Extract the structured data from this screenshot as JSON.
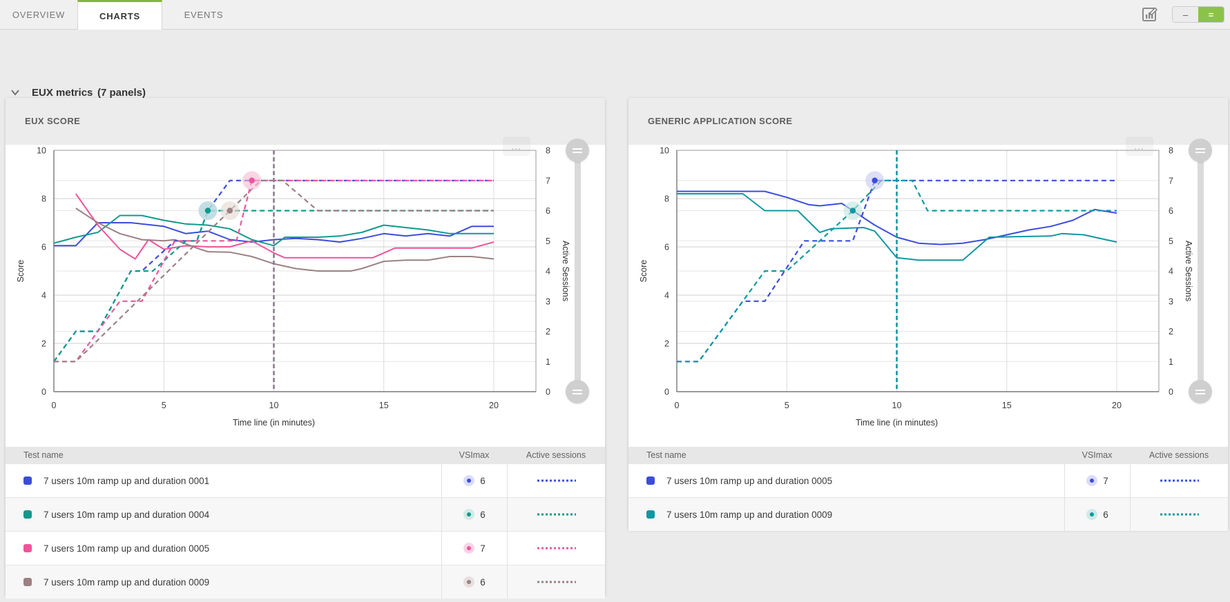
{
  "tabs": [
    {
      "label": "OVERVIEW",
      "active": false
    },
    {
      "label": "CHARTS",
      "active": true
    },
    {
      "label": "EVENTS",
      "active": false
    }
  ],
  "toolbar": {
    "chart_edit_icon": "chart-edit-icon",
    "compact_label": "–",
    "expanded_label": "=",
    "accent_green": "#8bc34a"
  },
  "section": {
    "title": "EUX metrics",
    "count": "(7 panels)"
  },
  "panels": [
    {
      "title": "EUX SCORE",
      "table": {
        "headers": [
          "Test name",
          "VSImax",
          "Active sessions"
        ],
        "rows": [
          {
            "name": "7 users 10m ramp up and duration 0001",
            "color": "#3b4cdf",
            "halo": "#dadcf8",
            "vsimax": "6"
          },
          {
            "name": "7 users 10m ramp up and duration 0004",
            "color": "#11998c",
            "halo": "#d0eae6",
            "vsimax": "6"
          },
          {
            "name": "7 users 10m ramp up and duration 0005",
            "color": "#ef549b",
            "halo": "#fad4e7",
            "vsimax": "7"
          },
          {
            "name": "7 users 10m ramp up and duration 0009",
            "color": "#9c8084",
            "halo": "#e7dede",
            "vsimax": "6"
          }
        ]
      }
    },
    {
      "title": "GENERIC APPLICATION SCORE",
      "table": {
        "headers": [
          "Test name",
          "VSImax",
          "Active sessions"
        ],
        "rows": [
          {
            "name": "7 users 10m ramp up and duration 0005",
            "color": "#3b4cdf",
            "halo": "#dadcf8",
            "vsimax": "7"
          },
          {
            "name": "7 users 10m ramp up and duration 0009",
            "color": "#0f98a0",
            "halo": "#cdeae8",
            "vsimax": "6"
          }
        ]
      }
    }
  ],
  "chart_data": [
    {
      "type": "line",
      "title": "EUX SCORE",
      "xlabel": "Time line (in minutes)",
      "ylabel_left": "Score",
      "ylabel_right": "Active Sessions",
      "xlim": [
        0,
        20
      ],
      "xticks": [
        0,
        5,
        10,
        15,
        20
      ],
      "ylim_left": [
        0,
        10
      ],
      "yticks_left": [
        0,
        2,
        4,
        6,
        8,
        10
      ],
      "ylim_right": [
        0,
        8
      ],
      "yticks_right": [
        0,
        1,
        2,
        3,
        4,
        5,
        6,
        7,
        8
      ],
      "grid": true,
      "vertical_marker": {
        "x": 10,
        "color": "#8d7a91"
      },
      "series": [
        {
          "name": "7 users 10m ramp up and duration 0001",
          "color": "#3b4cdf",
          "style": "solid",
          "axis": "left",
          "points": [
            [
              0,
              6.05
            ],
            [
              1,
              6.05
            ],
            [
              2,
              7.0
            ],
            [
              3.5,
              7.0
            ],
            [
              4,
              6.95
            ],
            [
              5,
              6.85
            ],
            [
              6,
              6.55
            ],
            [
              7,
              6.65
            ],
            [
              8,
              6.3
            ],
            [
              9,
              6.2
            ],
            [
              10,
              6.3
            ],
            [
              11,
              6.35
            ],
            [
              12,
              6.3
            ],
            [
              13,
              6.2
            ],
            [
              14,
              6.35
            ],
            [
              15,
              6.55
            ],
            [
              16,
              6.45
            ],
            [
              17,
              6.55
            ],
            [
              18,
              6.45
            ],
            [
              19,
              6.85
            ],
            [
              20,
              6.85
            ]
          ]
        },
        {
          "name": "7 users 10m ramp up and duration 0004",
          "color": "#11998c",
          "style": "solid",
          "axis": "left",
          "points": [
            [
              0,
              6.15
            ],
            [
              1,
              6.4
            ],
            [
              2,
              6.6
            ],
            [
              3,
              7.3
            ],
            [
              4,
              7.3
            ],
            [
              5,
              7.1
            ],
            [
              6,
              6.95
            ],
            [
              7,
              6.9
            ],
            [
              8,
              6.75
            ],
            [
              9,
              6.3
            ],
            [
              10,
              6.05
            ],
            [
              10.5,
              6.4
            ],
            [
              12,
              6.4
            ],
            [
              13,
              6.45
            ],
            [
              14,
              6.6
            ],
            [
              15,
              6.9
            ],
            [
              16,
              6.8
            ],
            [
              17,
              6.7
            ],
            [
              18,
              6.55
            ],
            [
              19,
              6.55
            ],
            [
              20,
              6.55
            ]
          ]
        },
        {
          "name": "7 users 10m ramp up and duration 0005",
          "color": "#ef549b",
          "style": "solid",
          "axis": "left",
          "points": [
            [
              1,
              8.2
            ],
            [
              2,
              6.9
            ],
            [
              3,
              5.9
            ],
            [
              3.7,
              5.5
            ],
            [
              4.3,
              6.3
            ],
            [
              5,
              5.9
            ],
            [
              6,
              6.05
            ],
            [
              7,
              6.0
            ],
            [
              8,
              6.0
            ],
            [
              9,
              6.25
            ],
            [
              10,
              5.75
            ],
            [
              10.5,
              5.55
            ],
            [
              14.5,
              5.55
            ],
            [
              15.5,
              5.95
            ],
            [
              19,
              5.95
            ],
            [
              20,
              6.2
            ]
          ]
        },
        {
          "name": "7 users 10m ramp up and duration 0009",
          "color": "#9c8084",
          "style": "solid",
          "axis": "left",
          "points": [
            [
              1,
              7.6
            ],
            [
              2,
              7.0
            ],
            [
              3,
              6.55
            ],
            [
              4,
              6.3
            ],
            [
              5,
              6.25
            ],
            [
              5.5,
              6.3
            ],
            [
              6.5,
              5.95
            ],
            [
              7,
              5.8
            ],
            [
              8,
              5.78
            ],
            [
              9,
              5.6
            ],
            [
              10,
              5.3
            ],
            [
              11,
              5.1
            ],
            [
              12,
              5.0
            ],
            [
              13.5,
              5.0
            ],
            [
              14,
              5.1
            ],
            [
              15,
              5.4
            ],
            [
              16,
              5.45
            ],
            [
              17,
              5.45
            ],
            [
              18,
              5.6
            ],
            [
              19,
              5.6
            ],
            [
              20,
              5.5
            ]
          ]
        },
        {
          "name": "0001 active sessions",
          "color": "#3b4cdf",
          "style": "dashed",
          "axis": "right",
          "points": [
            [
              0,
              1
            ],
            [
              1,
              2
            ],
            [
              2,
              2
            ],
            [
              3.5,
              4
            ],
            [
              4,
              4
            ],
            [
              5.5,
              5
            ],
            [
              6.5,
              5
            ],
            [
              7,
              6
            ],
            [
              8,
              7
            ],
            [
              20,
              7
            ]
          ]
        },
        {
          "name": "0004 active sessions",
          "color": "#11998c",
          "style": "dashed",
          "axis": "right",
          "points": [
            [
              0,
              1
            ],
            [
              1,
              2
            ],
            [
              2,
              2
            ],
            [
              3.5,
              4
            ],
            [
              4.5,
              4
            ],
            [
              6,
              5
            ],
            [
              6.5,
              5
            ],
            [
              7,
              6
            ],
            [
              20,
              6
            ]
          ]
        },
        {
          "name": "0005 active sessions",
          "color": "#ef549b",
          "style": "dashed",
          "axis": "right",
          "points": [
            [
              0,
              1
            ],
            [
              1,
              1
            ],
            [
              3,
              3
            ],
            [
              4,
              3
            ],
            [
              5.5,
              5
            ],
            [
              8.3,
              5
            ],
            [
              9,
              7
            ],
            [
              20,
              7
            ]
          ]
        },
        {
          "name": "0009 active sessions",
          "color": "#9c8084",
          "style": "dashed",
          "axis": "right",
          "points": [
            [
              0,
              1
            ],
            [
              1,
              1
            ],
            [
              8,
              6
            ],
            [
              9.4,
              7
            ],
            [
              10.4,
              7
            ],
            [
              12,
              6
            ],
            [
              20,
              6
            ]
          ]
        }
      ],
      "vsimax_markers": [
        {
          "x": 7,
          "sessions": 6,
          "color": "#3b4cdf",
          "halo": "#a6c3e4"
        },
        {
          "x": 7,
          "sessions": 6,
          "color": "#11998c",
          "halo": "#bfe0db"
        },
        {
          "x": 8,
          "sessions": 6,
          "color": "#9c8084",
          "halo": "#e3d8d0"
        },
        {
          "x": 9,
          "sessions": 7,
          "color": "#ef549b",
          "halo": "#f6bcd6"
        }
      ]
    },
    {
      "type": "line",
      "title": "GENERIC APPLICATION SCORE",
      "xlabel": "Time line (in minutes)",
      "ylabel_left": "Score",
      "ylabel_right": "Active Sessions",
      "xlim": [
        0,
        20
      ],
      "xticks": [
        0,
        5,
        10,
        15,
        20
      ],
      "ylim_left": [
        0,
        10
      ],
      "yticks_left": [
        0,
        2,
        4,
        6,
        8,
        10
      ],
      "ylim_right": [
        0,
        8
      ],
      "yticks_right": [
        0,
        1,
        2,
        3,
        4,
        5,
        6,
        7,
        8
      ],
      "grid": true,
      "vertical_marker": {
        "x": 10,
        "color": "#0f98a0"
      },
      "series": [
        {
          "name": "7 users 10m ramp up and duration 0005",
          "color": "#3b4cdf",
          "style": "solid",
          "axis": "left",
          "points": [
            [
              0,
              8.3
            ],
            [
              4,
              8.3
            ],
            [
              5,
              8.05
            ],
            [
              6,
              7.75
            ],
            [
              6.5,
              7.7
            ],
            [
              7.5,
              7.8
            ],
            [
              8,
              7.5
            ],
            [
              9,
              6.9
            ],
            [
              10,
              6.4
            ],
            [
              11,
              6.15
            ],
            [
              12,
              6.1
            ],
            [
              13,
              6.15
            ],
            [
              14,
              6.3
            ],
            [
              15,
              6.5
            ],
            [
              16,
              6.7
            ],
            [
              17,
              6.85
            ],
            [
              18,
              7.1
            ],
            [
              19,
              7.55
            ],
            [
              20,
              7.4
            ]
          ]
        },
        {
          "name": "7 users 10m ramp up and duration 0009",
          "color": "#0f98a0",
          "style": "solid",
          "axis": "left",
          "points": [
            [
              0,
              8.2
            ],
            [
              3,
              8.2
            ],
            [
              4,
              7.5
            ],
            [
              5.5,
              7.5
            ],
            [
              6.5,
              6.6
            ],
            [
              7,
              6.75
            ],
            [
              8.5,
              6.8
            ],
            [
              9,
              6.65
            ],
            [
              10,
              5.55
            ],
            [
              11,
              5.45
            ],
            [
              13,
              5.45
            ],
            [
              14.2,
              6.4
            ],
            [
              17,
              6.45
            ],
            [
              17.5,
              6.55
            ],
            [
              18.5,
              6.5
            ],
            [
              20,
              6.2
            ]
          ]
        },
        {
          "name": "0005 active sessions",
          "color": "#3b4cdf",
          "style": "dashed",
          "axis": "right",
          "points": [
            [
              0,
              1
            ],
            [
              1,
              1
            ],
            [
              3,
              3
            ],
            [
              4,
              3
            ],
            [
              5.8,
              5
            ],
            [
              8,
              5
            ],
            [
              9,
              7
            ],
            [
              20,
              7
            ]
          ]
        },
        {
          "name": "0009 active sessions",
          "color": "#0f98a0",
          "style": "dashed",
          "axis": "right",
          "points": [
            [
              0,
              1
            ],
            [
              1,
              1
            ],
            [
              4,
              4
            ],
            [
              5,
              4
            ],
            [
              8,
              6
            ],
            [
              9.3,
              7
            ],
            [
              10.7,
              7
            ],
            [
              11.4,
              6
            ],
            [
              20,
              6
            ]
          ]
        }
      ],
      "vsimax_markers": [
        {
          "x": 8,
          "sessions": 6,
          "color": "#0f98a0",
          "halo": "#c2e5df"
        },
        {
          "x": 9,
          "sessions": 7,
          "color": "#3b4cdf",
          "halo": "#c9cbf0"
        }
      ]
    }
  ]
}
